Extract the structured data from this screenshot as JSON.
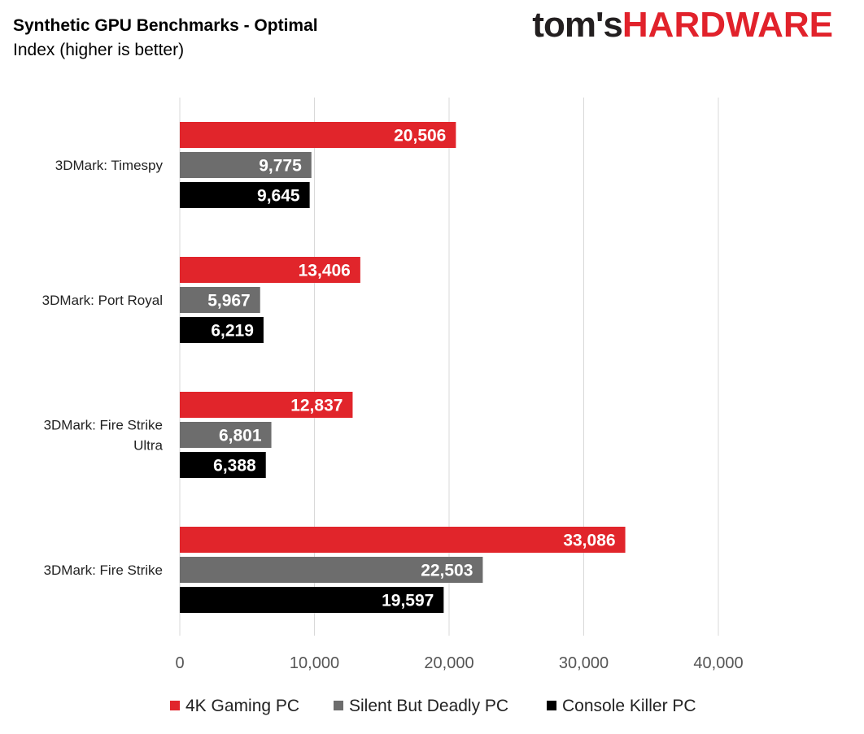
{
  "header": {
    "title": "Synthetic GPU Benchmarks - Optimal",
    "subtitle": "Index (higher is better)"
  },
  "logo": {
    "part1": "tom's",
    "part2": "HARDWARE"
  },
  "chart_data": {
    "type": "bar",
    "orientation": "horizontal",
    "title": "Synthetic GPU Benchmarks - Optimal",
    "subtitle": "Index (higher is better)",
    "categories": [
      [
        "3DMark: Timespy"
      ],
      [
        "3DMark: Port Royal"
      ],
      [
        "3DMark: Fire Strike",
        "Ultra"
      ],
      [
        "3DMark: Fire Strike"
      ]
    ],
    "series": [
      {
        "name": "4K Gaming PC",
        "color": "#e1252b",
        "values": [
          20506,
          13406,
          12837,
          33086
        ],
        "labels": [
          "20,506",
          "13,406",
          "12,837",
          "33,086"
        ]
      },
      {
        "name": "Silent But Deadly PC",
        "color": "#6d6d6d",
        "values": [
          9775,
          5967,
          6801,
          22503
        ],
        "labels": [
          "9,775",
          "5,967",
          "6,801",
          "22,503"
        ]
      },
      {
        "name": "Console Killer PC",
        "color": "#000000",
        "values": [
          9645,
          6219,
          6388,
          19597
        ],
        "labels": [
          "9,645",
          "6,219",
          "6,388",
          "19,597"
        ]
      }
    ],
    "xlim": [
      0,
      40000
    ],
    "xticks": [
      0,
      10000,
      20000,
      30000,
      40000
    ],
    "xtick_labels": [
      "0",
      "10,000",
      "20,000",
      "30,000",
      "40,000"
    ],
    "grid": true,
    "legend_position": "bottom"
  }
}
